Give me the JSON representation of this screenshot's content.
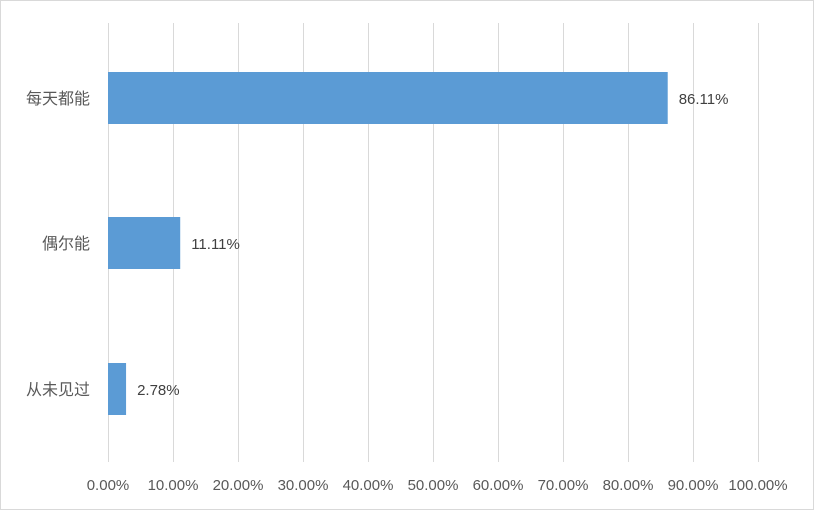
{
  "chart_data": {
    "type": "bar",
    "orientation": "horizontal",
    "categories": [
      "每天都能",
      "偶尔能",
      "从未见过"
    ],
    "values": [
      86.11,
      11.11,
      2.78
    ],
    "data_labels": [
      "86.11%",
      "11.11%",
      "2.78%"
    ],
    "xlim": [
      0,
      100
    ],
    "x_ticks": [
      "0.00%",
      "10.00%",
      "20.00%",
      "30.00%",
      "40.00%",
      "50.00%",
      "60.00%",
      "70.00%",
      "80.00%",
      "90.00%",
      "100.00%"
    ],
    "grid": true,
    "bar_color": "#5b9bd5",
    "grid_color": "#d9d9d9"
  }
}
